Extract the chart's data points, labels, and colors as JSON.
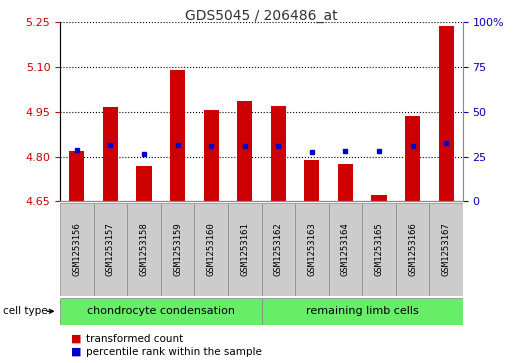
{
  "title": "GDS5045 / 206486_at",
  "samples": [
    "GSM1253156",
    "GSM1253157",
    "GSM1253158",
    "GSM1253159",
    "GSM1253160",
    "GSM1253161",
    "GSM1253162",
    "GSM1253163",
    "GSM1253164",
    "GSM1253165",
    "GSM1253166",
    "GSM1253167"
  ],
  "transformed_count": [
    4.82,
    4.965,
    4.77,
    5.09,
    4.955,
    4.985,
    4.968,
    4.79,
    4.775,
    4.67,
    4.935,
    5.235
  ],
  "percentile_rank": [
    4.823,
    4.838,
    4.808,
    4.838,
    4.835,
    4.835,
    4.835,
    4.815,
    4.82,
    4.82,
    4.835,
    4.845
  ],
  "ylim_left": [
    4.65,
    5.25
  ],
  "ylim_right": [
    0,
    100
  ],
  "yticks_left": [
    4.65,
    4.8,
    4.95,
    5.1,
    5.25
  ],
  "yticks_right": [
    0,
    25,
    50,
    75,
    100
  ],
  "bar_bottom": 4.65,
  "bar_color": "#cc0000",
  "dot_color": "#0000cc",
  "group1_label": "chondrocyte condensation",
  "group2_label": "remaining limb cells",
  "group1_count": 6,
  "group2_count": 6,
  "cell_type_label": "cell type",
  "legend1": "transformed count",
  "legend2": "percentile rank within the sample",
  "sample_bg_color": "#cccccc",
  "group_color": "#66ee66",
  "title_color": "#333333",
  "left_axis_color": "#cc0000",
  "right_axis_color": "#0000bb",
  "bar_width": 0.45
}
